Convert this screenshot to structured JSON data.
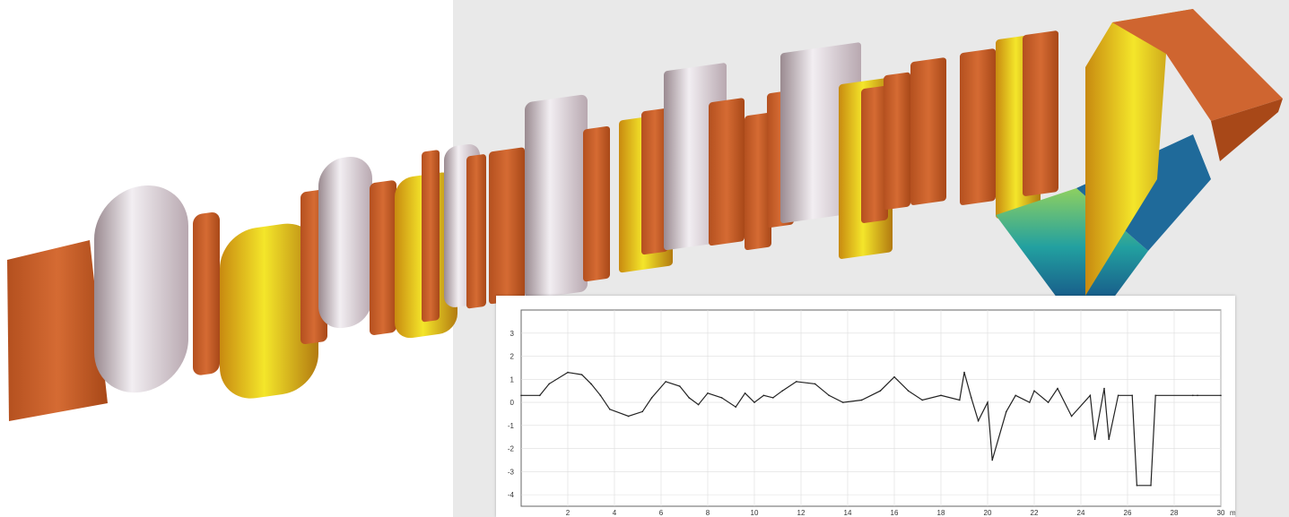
{
  "scene": {
    "description_icon": "3d-surface-profile",
    "colors": {
      "copper": "#c8602a",
      "silver": "#d8ccd4",
      "yellow": "#e8d020",
      "blue": "#1a3a8a",
      "green": "#6cc070"
    }
  },
  "chart_data": {
    "type": "line",
    "title": "",
    "xlabel": "mm",
    "ylabel": "",
    "xlim": [
      0,
      30
    ],
    "ylim": [
      -4.5,
      4
    ],
    "grid": true,
    "x_ticks": [
      "2",
      "4",
      "6",
      "8",
      "10",
      "12",
      "14",
      "16",
      "18",
      "20",
      "22",
      "24",
      "26",
      "28",
      "30"
    ],
    "y_ticks": [
      "3",
      "2",
      "1",
      "0",
      "-1",
      "-2",
      "-3",
      "-4"
    ],
    "x_unit": "mm",
    "series": [
      {
        "x": [
          0,
          0.8,
          1.2,
          2.0,
          2.6,
          3.0,
          3.4,
          3.8,
          4.6,
          5.2,
          5.6,
          6.2,
          6.8,
          7.2,
          7.6,
          8.0,
          8.6,
          9.2,
          9.6,
          10.0,
          10.4,
          10.8,
          11.2,
          11.8,
          12.6,
          13.2,
          13.8,
          14.6,
          15.4,
          16.0,
          16.6,
          17.2,
          18.0,
          18.8,
          19.0,
          19.3,
          19.6,
          20.0,
          20.2,
          20.8,
          21.2,
          21.8,
          22.0,
          22.6,
          23.0,
          23.6,
          24.4,
          24.6,
          25.0,
          25.2,
          25.6,
          26.2,
          26.4,
          27.0,
          27.2,
          28.8,
          29.0,
          30.0
        ],
        "y": [
          0.3,
          0.3,
          0.8,
          1.3,
          1.2,
          0.8,
          0.3,
          -0.3,
          -0.6,
          -0.4,
          0.2,
          0.9,
          0.7,
          0.2,
          -0.1,
          0.4,
          0.2,
          -0.2,
          0.4,
          0.0,
          0.3,
          0.2,
          0.5,
          0.9,
          0.8,
          0.3,
          0.0,
          0.1,
          0.5,
          1.1,
          0.5,
          0.1,
          0.3,
          0.1,
          1.3,
          0.2,
          -0.8,
          0.0,
          -2.5,
          -0.4,
          0.3,
          0.0,
          0.5,
          0.0,
          0.6,
          -0.6,
          0.3,
          -1.6,
          0.6,
          -1.6,
          0.3,
          0.3,
          -3.6,
          -3.6,
          0.3,
          0.3,
          0.3,
          0.3
        ]
      }
    ]
  }
}
